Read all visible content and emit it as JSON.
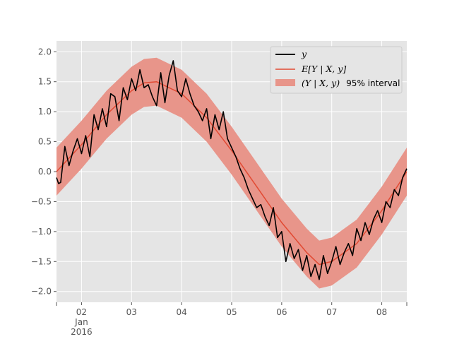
{
  "chart_data": {
    "type": "line",
    "title": "",
    "xlabel": "",
    "ylabel": "",
    "x_range": [
      "2016-01-01T12:00",
      "2016-01-08T12:00"
    ],
    "ylim": [
      -2.18,
      2.18
    ],
    "grid": true,
    "legend_position": "top-right",
    "x_ticks": [
      {
        "value": "2016-01-02",
        "label": "02",
        "sublabel": "Jan",
        "year": "2016"
      },
      {
        "value": "2016-01-03",
        "label": "03"
      },
      {
        "value": "2016-01-04",
        "label": "04"
      },
      {
        "value": "2016-01-05",
        "label": "05"
      },
      {
        "value": "2016-01-06",
        "label": "06"
      },
      {
        "value": "2016-01-07",
        "label": "07"
      },
      {
        "value": "2016-01-08",
        "label": "08"
      }
    ],
    "y_ticks": [
      {
        "value": 2.0,
        "label": "2.0"
      },
      {
        "value": 1.5,
        "label": "1.5"
      },
      {
        "value": 1.0,
        "label": "1.0"
      },
      {
        "value": 0.5,
        "label": "0.5"
      },
      {
        "value": 0.0,
        "label": "0.0"
      },
      {
        "value": -0.5,
        "label": "−0.5"
      },
      {
        "value": -1.0,
        "label": "−1.0"
      },
      {
        "value": -1.5,
        "label": "−1.5"
      },
      {
        "value": -2.0,
        "label": "−2.0"
      }
    ],
    "legend": [
      {
        "key": "y",
        "label": "y",
        "style": "math"
      },
      {
        "key": "mean",
        "label": "E[Y | X, y]",
        "style": "math"
      },
      {
        "key": "band",
        "label_math": "(Y | X, y)",
        "label_text": "95% interval"
      }
    ],
    "colors": {
      "y": "#000000",
      "mean": "#e24a33",
      "band": "#e8958a",
      "background": "#e5e5e5",
      "grid": "#ffffff"
    },
    "series": [
      {
        "key": "y",
        "x": [
          "2016-01-01T12:00",
          "2016-01-01T13:00",
          "2016-01-01T14:00",
          "2016-01-01T16:00",
          "2016-01-01T18:00",
          "2016-01-01T20:00",
          "2016-01-01T22:00",
          "2016-01-02T00:00",
          "2016-01-02T02:00",
          "2016-01-02T04:00",
          "2016-01-02T06:00",
          "2016-01-02T08:00",
          "2016-01-02T10:00",
          "2016-01-02T12:00",
          "2016-01-02T14:00",
          "2016-01-02T16:00",
          "2016-01-02T18:00",
          "2016-01-02T20:00",
          "2016-01-02T22:00",
          "2016-01-03T00:00",
          "2016-01-03T02:00",
          "2016-01-03T04:00",
          "2016-01-03T06:00",
          "2016-01-03T08:00",
          "2016-01-03T10:00",
          "2016-01-03T12:00",
          "2016-01-03T14:00",
          "2016-01-03T16:00",
          "2016-01-03T18:00",
          "2016-01-03T20:00",
          "2016-01-03T22:00",
          "2016-01-04T00:00",
          "2016-01-04T02:00",
          "2016-01-04T04:00",
          "2016-01-04T06:00",
          "2016-01-04T08:00",
          "2016-01-04T10:00",
          "2016-01-04T12:00",
          "2016-01-04T14:00",
          "2016-01-04T16:00",
          "2016-01-04T18:00",
          "2016-01-04T20:00",
          "2016-01-04T22:00",
          "2016-01-05T00:00",
          "2016-01-05T02:00",
          "2016-01-05T04:00",
          "2016-01-05T06:00",
          "2016-01-05T08:00",
          "2016-01-05T10:00",
          "2016-01-05T12:00",
          "2016-01-05T14:00",
          "2016-01-05T16:00",
          "2016-01-05T18:00",
          "2016-01-05T20:00",
          "2016-01-05T22:00",
          "2016-01-06T00:00",
          "2016-01-06T02:00",
          "2016-01-06T04:00",
          "2016-01-06T06:00",
          "2016-01-06T08:00",
          "2016-01-06T10:00",
          "2016-01-06T12:00",
          "2016-01-06T14:00",
          "2016-01-06T16:00",
          "2016-01-06T18:00",
          "2016-01-06T20:00",
          "2016-01-06T22:00",
          "2016-01-07T00:00",
          "2016-01-07T02:00",
          "2016-01-07T04:00",
          "2016-01-07T06:00",
          "2016-01-07T08:00",
          "2016-01-07T10:00",
          "2016-01-07T12:00",
          "2016-01-07T14:00",
          "2016-01-07T16:00",
          "2016-01-07T18:00",
          "2016-01-07T20:00",
          "2016-01-07T22:00",
          "2016-01-08T00:00",
          "2016-01-08T02:00",
          "2016-01-08T04:00",
          "2016-01-08T06:00",
          "2016-01-08T08:00",
          "2016-01-08T10:00",
          "2016-01-08T12:00"
        ],
        "values": [
          -0.1,
          -0.2,
          -0.18,
          0.42,
          0.1,
          0.35,
          0.55,
          0.3,
          0.6,
          0.25,
          0.95,
          0.7,
          1.05,
          0.75,
          1.3,
          1.25,
          0.85,
          1.4,
          1.2,
          1.55,
          1.35,
          1.7,
          1.4,
          1.45,
          1.25,
          1.1,
          1.65,
          1.15,
          1.6,
          1.85,
          1.35,
          1.25,
          1.55,
          1.3,
          1.1,
          1.0,
          0.85,
          1.05,
          0.55,
          0.95,
          0.7,
          1.0,
          0.55,
          0.4,
          0.25,
          0.05,
          -0.1,
          -0.3,
          -0.45,
          -0.6,
          -0.55,
          -0.75,
          -0.9,
          -0.6,
          -1.1,
          -1.0,
          -1.5,
          -1.2,
          -1.45,
          -1.3,
          -1.65,
          -1.4,
          -1.75,
          -1.55,
          -1.8,
          -1.4,
          -1.7,
          -1.5,
          -1.25,
          -1.55,
          -1.35,
          -1.2,
          -1.4,
          -0.95,
          -1.15,
          -0.85,
          -1.05,
          -0.8,
          -0.65,
          -0.85,
          -0.5,
          -0.6,
          -0.3,
          -0.4,
          -0.1,
          0.05
        ]
      },
      {
        "key": "mean",
        "x": [
          "2016-01-01T12:00",
          "2016-01-02T00:00",
          "2016-01-02T12:00",
          "2016-01-03T00:00",
          "2016-01-03T06:00",
          "2016-01-03T12:00",
          "2016-01-04T00:00",
          "2016-01-04T12:00",
          "2016-01-05T00:00",
          "2016-01-05T12:00",
          "2016-01-06T00:00",
          "2016-01-06T12:00",
          "2016-01-06T18:00",
          "2016-01-07T00:00",
          "2016-01-07T12:00",
          "2016-01-08T00:00",
          "2016-01-08T12:00"
        ],
        "values": [
          0.0,
          0.45,
          0.95,
          1.35,
          1.48,
          1.5,
          1.3,
          0.9,
          0.35,
          -0.25,
          -0.85,
          -1.35,
          -1.55,
          -1.5,
          -1.2,
          -0.65,
          0.0
        ]
      }
    ],
    "band": {
      "key": "band",
      "x": [
        "2016-01-01T12:00",
        "2016-01-02T00:00",
        "2016-01-02T12:00",
        "2016-01-03T00:00",
        "2016-01-03T06:00",
        "2016-01-03T12:00",
        "2016-01-04T00:00",
        "2016-01-04T12:00",
        "2016-01-05T00:00",
        "2016-01-05T12:00",
        "2016-01-06T00:00",
        "2016-01-06T12:00",
        "2016-01-06T18:00",
        "2016-01-07T00:00",
        "2016-01-07T12:00",
        "2016-01-08T00:00",
        "2016-01-08T12:00"
      ],
      "lower": [
        -0.4,
        0.05,
        0.55,
        0.95,
        1.08,
        1.1,
        0.9,
        0.5,
        -0.05,
        -0.65,
        -1.25,
        -1.75,
        -1.95,
        -1.9,
        -1.6,
        -1.05,
        -0.4
      ],
      "upper": [
        0.4,
        0.85,
        1.35,
        1.75,
        1.88,
        1.9,
        1.7,
        1.3,
        0.75,
        0.15,
        -0.45,
        -0.95,
        -1.15,
        -1.1,
        -0.8,
        -0.25,
        0.4
      ]
    }
  }
}
